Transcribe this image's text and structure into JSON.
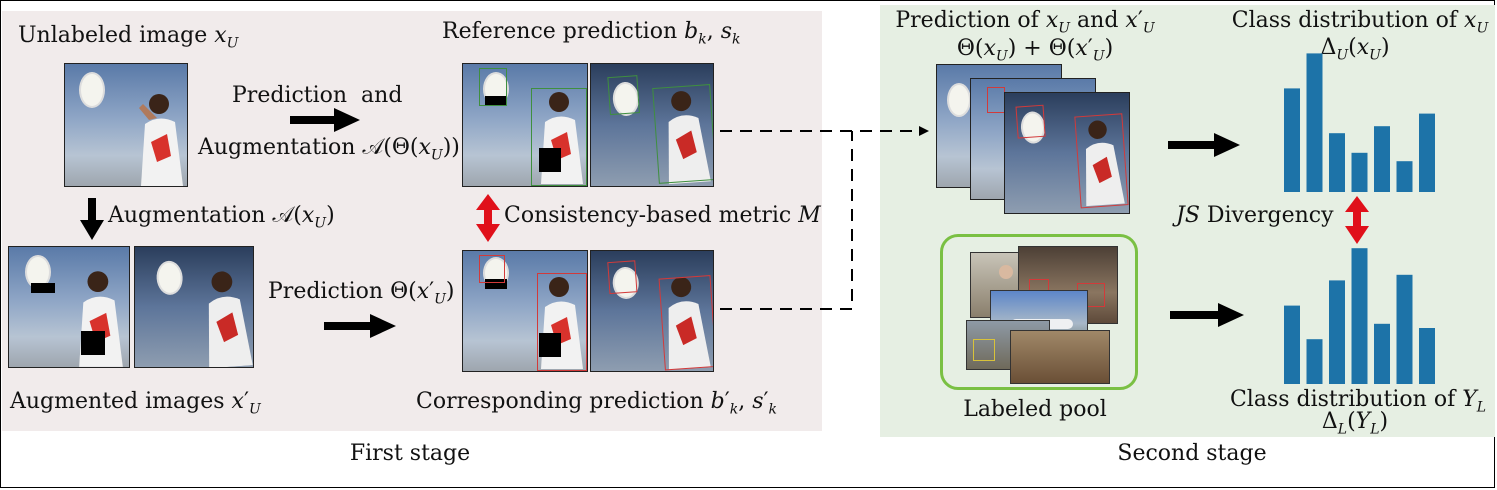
{
  "first_stage": {
    "caption": "First stage",
    "unlabeled_image": "Unlabeled image x_U",
    "augmented_images": "Augmented images x′_U",
    "reference_prediction": "Reference prediction b_k, s_k",
    "corresponding_prediction": "Corresponding prediction b′_k, s′_k",
    "prediction_and": "Prediction  and",
    "augmentation_of_prediction": "Augmentation 𝒜(Θ(x_U))",
    "augmentation": "Augmentation 𝒜(x_U)",
    "prediction_aug": "Prediction Θ(x′_U)",
    "consistency_metric": "Consistency-based metric M"
  },
  "second_stage": {
    "caption": "Second stage",
    "prediction_title_1": "Prediction of x_U and x′_U",
    "prediction_title_2": "Θ(x_U) + Θ(x′_U)",
    "class_dist_u_1": "Class distribution of x_U",
    "class_dist_u_2": "Δ_U(x_U)",
    "js_divergency": "JS Divergency",
    "labeled_pool": "Labeled pool",
    "class_dist_l_1": "Class distribution of Y_L",
    "class_dist_l_2": "Δ_L(Y_L)"
  },
  "bars_unlabeled": [
    0.74,
    0.99,
    0.42,
    0.28,
    0.47,
    0.22,
    0.56
  ],
  "bars_labeled": [
    0.56,
    0.32,
    0.74,
    0.97,
    0.43,
    0.78,
    0.4
  ],
  "colors": {
    "bar": "#1d73a8",
    "red_arrow": "#e0101a",
    "green_box": "#3f8f3f",
    "red_box": "#d23a3a",
    "pool_border": "#7ac043"
  }
}
